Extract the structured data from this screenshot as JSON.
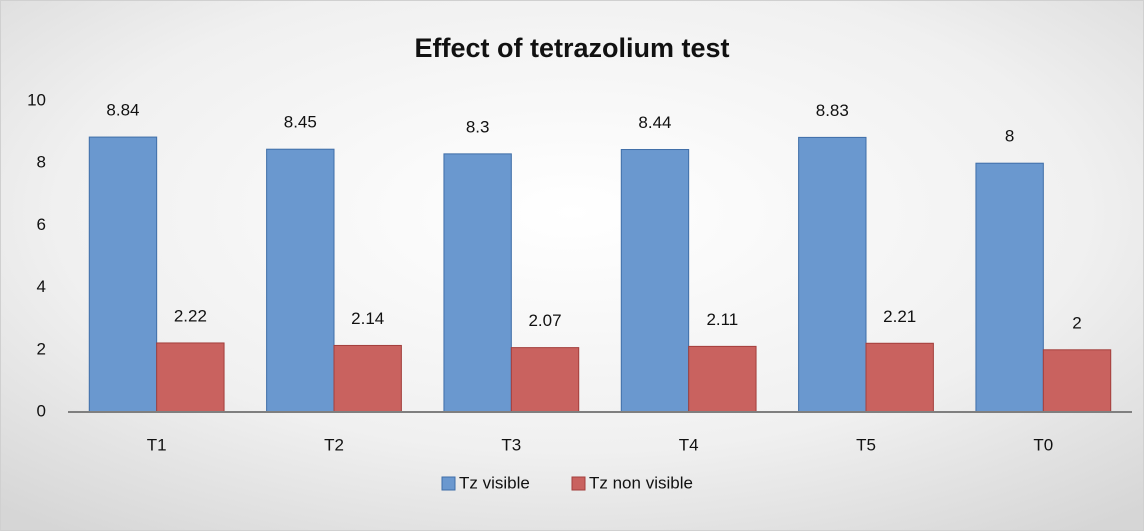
{
  "chart_data": {
    "type": "bar",
    "title": "Effect of tetrazolium test",
    "categories": [
      "T1",
      "T2",
      "T3",
      "T4",
      "T5",
      "T0"
    ],
    "series": [
      {
        "name": "Tz visible",
        "color": "#6a98cf",
        "values": [
          8.84,
          8.45,
          8.3,
          8.44,
          8.83,
          8
        ]
      },
      {
        "name": "Tz non visible",
        "color": "#c9625f",
        "values": [
          2.22,
          2.14,
          2.07,
          2.11,
          2.21,
          2
        ]
      }
    ],
    "ylim": [
      0,
      10
    ],
    "yticks": [
      0,
      2,
      4,
      6,
      8,
      10
    ],
    "grid": false,
    "legend": "bottom"
  }
}
